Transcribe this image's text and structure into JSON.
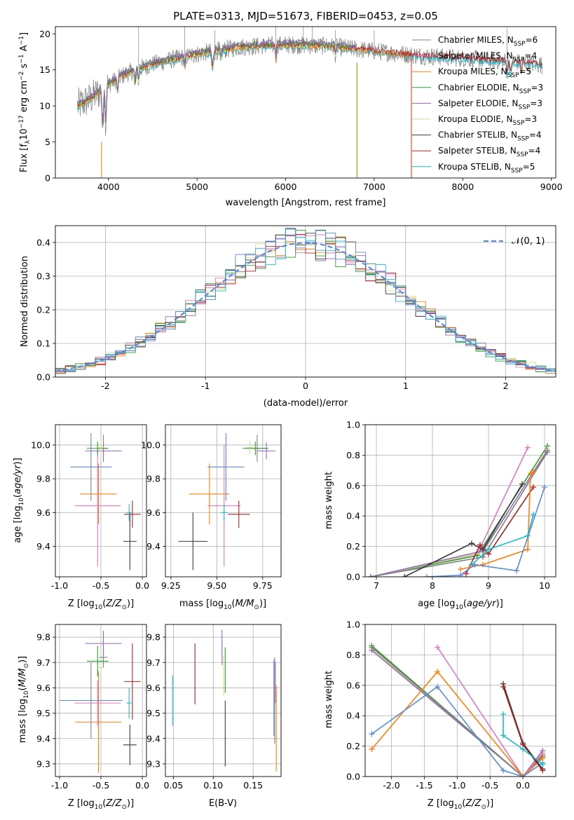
{
  "colors": {
    "Chabrier MILES": "#808080",
    "Salpeter MILES": "#e377c2",
    "Kroupa MILES": "#ff7f0e",
    "Chabrier ELODIE": "#2ca02c",
    "Salpeter ELODIE": "#9467bd",
    "Kroupa ELODIE": "#dbdb8d",
    "Chabrier STELIB": "#3a3a3a",
    "Salpeter STELIB": "#b22222",
    "Kroupa STELIB": "#17becf",
    "normal": "#5b8bd6"
  },
  "chart_data": [
    {
      "type": "line",
      "title": "PLATE=0313, MJD=51673, FIBERID=0453, z=0.05",
      "xlabel": "wavelength [Angstrom, rest frame]",
      "ylabel": "Flux [f_λ 10^-17 erg cm^-2 s^-1 A^-1]",
      "xlim": [
        3400,
        9050
      ],
      "ylim": [
        0,
        21
      ],
      "xticks": [
        4000,
        5000,
        6000,
        7000,
        8000,
        9000
      ],
      "yticks": [
        0,
        5,
        10,
        15,
        20
      ],
      "legend": "top-right",
      "grid": false,
      "series": [
        {
          "name": "Chabrier MILES, N_SSP=6"
        },
        {
          "name": "Salpeter MILES, N_SSP=4"
        },
        {
          "name": "Kroupa MILES, N_SSP=5"
        },
        {
          "name": "Chabrier ELODIE, N_SSP=3"
        },
        {
          "name": "Salpeter ELODIE, N_SSP=3"
        },
        {
          "name": "Kroupa ELODIE, N_SSP=3"
        },
        {
          "name": "Chabrier STELIB, N_SSP=4"
        },
        {
          "name": "Salpeter STELIB, N_SSP=4"
        },
        {
          "name": "Kroupa STELIB, N_SSP=5"
        }
      ],
      "continuum": {
        "x": [
          3650,
          3800,
          4000,
          4200,
          4500,
          5000,
          5500,
          6000,
          6500,
          7000,
          7500,
          8000,
          8500,
          8900
        ],
        "y": [
          10,
          11,
          13,
          14.5,
          15.8,
          17.2,
          18.2,
          18.5,
          18.3,
          17.6,
          17,
          16.6,
          16.2,
          15.7
        ]
      },
      "model_cutoffs": [
        3920,
        6800,
        7420
      ]
    },
    {
      "type": "bar",
      "xlabel": "(data-model)/error",
      "ylabel": "Normed distribution",
      "xlim": [
        -2.5,
        2.5
      ],
      "ylim": [
        0,
        0.45
      ],
      "xticks": [
        -2,
        -1,
        0,
        1,
        2
      ],
      "yticks": [
        0.0,
        0.1,
        0.2,
        0.3,
        0.4
      ],
      "grid": true,
      "legend": "top-right",
      "reference": {
        "name": "N(0,1)",
        "mean": 0,
        "sigma": 1
      }
    },
    {
      "type": "scatter",
      "xlabel": "Z [log10(Z/Z⊙)]",
      "ylabel": "age [log10(age/yr)]",
      "xlim": [
        -1.05,
        0.05
      ],
      "ylim": [
        9.22,
        10.12
      ],
      "xticks": [
        -1.0,
        -0.5,
        0.0
      ],
      "yticks": [
        9.4,
        9.6,
        9.8,
        10.0
      ],
      "grid": true,
      "points": [
        {
          "model": "Chabrier MILES",
          "x": -0.47,
          "y": 9.98,
          "xerr": 0.05,
          "yerr": 0.08
        },
        {
          "model": "Salpeter MILES",
          "x": -0.54,
          "y": 9.64,
          "xerr": 0.28,
          "yerr": 0.36
        },
        {
          "model": "Kroupa MILES",
          "x": -0.53,
          "y": 9.71,
          "xerr": 0.22,
          "yerr": 0.18
        },
        {
          "model": "Chabrier ELODIE",
          "x": -0.54,
          "y": 9.98,
          "xerr": 0.13,
          "yerr": 0.04
        },
        {
          "model": "Salpeter ELODIE",
          "x": -0.47,
          "y": 9.965,
          "xerr": 0.22,
          "yerr": 0.05
        },
        {
          "model": "Kroupa ELODIE",
          "x": -0.5,
          "y": 9.985,
          "xerr": 0.04,
          "yerr": 0.04
        },
        {
          "model": "Chabrier STELIB",
          "x": -0.15,
          "y": 9.43,
          "xerr": 0.08,
          "yerr": 0.17
        },
        {
          "model": "Salpeter STELIB",
          "x": -0.12,
          "y": 9.59,
          "xerr": 0.1,
          "yerr": 0.08
        },
        {
          "model": "Kroupa STELIB",
          "x": -0.16,
          "y": 9.6,
          "xerr": 0.03,
          "yerr": 0.05
        },
        {
          "model": "normal",
          "x": -0.62,
          "y": 9.87,
          "xerr": 0.25,
          "yerr": 0.2
        }
      ]
    },
    {
      "type": "scatter",
      "xlabel": "mass [log10(M/M⊙)]",
      "ylabel": "",
      "xlim": [
        9.22,
        9.85
      ],
      "ylim": [
        9.22,
        10.12
      ],
      "xticks": [
        9.25,
        9.5,
        9.75
      ],
      "yticks": [
        9.4,
        9.6,
        9.8,
        10.0
      ],
      "grid": true,
      "points": [
        {
          "model": "Chabrier MILES",
          "x": 9.72,
          "y": 9.98,
          "xerr": 0.06,
          "yerr": 0.08
        },
        {
          "model": "Salpeter MILES",
          "x": 9.54,
          "y": 9.64,
          "xerr": 0.09,
          "yerr": 0.36
        },
        {
          "model": "Kroupa MILES",
          "x": 9.46,
          "y": 9.71,
          "xerr": 0.11,
          "yerr": 0.18
        },
        {
          "model": "Chabrier ELODIE",
          "x": 9.71,
          "y": 9.98,
          "xerr": 0.07,
          "yerr": 0.04
        },
        {
          "model": "Salpeter ELODIE",
          "x": 9.77,
          "y": 9.965,
          "xerr": 0.05,
          "yerr": 0.05
        },
        {
          "model": "Kroupa ELODIE",
          "x": 9.68,
          "y": 9.985,
          "xerr": 0.02,
          "yerr": 0.04
        },
        {
          "model": "Chabrier STELIB",
          "x": 9.37,
          "y": 9.43,
          "xerr": 0.08,
          "yerr": 0.17
        },
        {
          "model": "Salpeter STELIB",
          "x": 9.62,
          "y": 9.59,
          "xerr": 0.06,
          "yerr": 0.08
        },
        {
          "model": "Kroupa STELIB",
          "x": 9.54,
          "y": 9.6,
          "xerr": 0.02,
          "yerr": 0.05
        },
        {
          "model": "normal",
          "x": 9.55,
          "y": 9.87,
          "xerr": 0.1,
          "yerr": 0.2
        }
      ]
    },
    {
      "type": "line",
      "xlabel": "age [log10(age/yr)]",
      "ylabel": "mass weight",
      "xlim": [
        6.8,
        10.2
      ],
      "ylim": [
        0,
        1.0
      ],
      "xticks": [
        7,
        8,
        9,
        10
      ],
      "yticks": [
        0.0,
        0.2,
        0.4,
        0.6,
        0.8,
        1.0
      ],
      "grid": true,
      "series": [
        {
          "model": "Salpeter MILES",
          "x": [
            6.9,
            8.8,
            9.7
          ],
          "y": [
            0.0,
            0.15,
            0.85
          ]
        },
        {
          "model": "Chabrier ELODIE",
          "x": [
            6.9,
            8.8,
            10.05
          ],
          "y": [
            0.0,
            0.14,
            0.86
          ]
        },
        {
          "model": "Kroupa ELODIE",
          "x": [
            6.9,
            8.9,
            10.05
          ],
          "y": [
            0.0,
            0.16,
            0.84
          ]
        },
        {
          "model": "Salpeter ELODIE",
          "x": [
            6.9,
            8.9,
            10.05
          ],
          "y": [
            0.0,
            0.17,
            0.83
          ]
        },
        {
          "model": "Chabrier MILES",
          "x": [
            6.9,
            8.9,
            10.05
          ],
          "y": [
            0.0,
            0.13,
            0.82
          ]
        },
        {
          "model": "Chabrier STELIB",
          "x": [
            7.5,
            8.7,
            8.9,
            9.6
          ],
          "y": [
            0.0,
            0.22,
            0.18,
            0.61
          ]
        },
        {
          "model": "Salpeter STELIB",
          "x": [
            8.6,
            8.85,
            9.0,
            9.8
          ],
          "y": [
            0.02,
            0.21,
            0.15,
            0.59
          ]
        },
        {
          "model": "Kroupa MILES",
          "x": [
            8.5,
            8.9,
            9.7,
            9.75,
            9.8
          ],
          "y": [
            0.05,
            0.08,
            0.18,
            0.68,
            0.69
          ]
        },
        {
          "model": "Kroupa STELIB",
          "x": [
            8.7,
            9.0,
            9.7,
            9.8
          ],
          "y": [
            0.08,
            0.18,
            0.27,
            0.41
          ]
        },
        {
          "model": "normal",
          "x": [
            7.9,
            8.5,
            8.75,
            9.5,
            10.0
          ],
          "y": [
            0.0,
            0.01,
            0.08,
            0.04,
            0.59
          ]
        }
      ]
    },
    {
      "type": "scatter",
      "xlabel": "Z [log10(Z/Z⊙)]",
      "ylabel": "mass [log10(M/M⊙)]",
      "xlim": [
        -1.05,
        0.05
      ],
      "ylim": [
        9.25,
        9.85
      ],
      "xticks": [
        -1.0,
        -0.5,
        0.0
      ],
      "yticks": [
        9.3,
        9.4,
        9.5,
        9.6,
        9.7,
        9.8
      ],
      "grid": true,
      "points": [
        {
          "model": "Chabrier MILES",
          "x": -0.47,
          "y": 9.72,
          "xerr": 0.05,
          "yerr": 0.04
        },
        {
          "model": "Salpeter MILES",
          "x": -0.54,
          "y": 9.54,
          "xerr": 0.28,
          "yerr": 0.09
        },
        {
          "model": "Kroupa MILES",
          "x": -0.53,
          "y": 9.465,
          "xerr": 0.28,
          "yerr": 0.2
        },
        {
          "model": "Chabrier ELODIE",
          "x": -0.54,
          "y": 9.705,
          "xerr": 0.13,
          "yerr": 0.06
        },
        {
          "model": "Salpeter ELODIE",
          "x": -0.47,
          "y": 9.775,
          "xerr": 0.22,
          "yerr": 0.05
        },
        {
          "model": "Kroupa ELODIE",
          "x": -0.5,
          "y": 9.68,
          "xerr": 0.04,
          "yerr": 0.02
        },
        {
          "model": "Chabrier STELIB",
          "x": -0.15,
          "y": 9.375,
          "xerr": 0.08,
          "yerr": 0.08
        },
        {
          "model": "Salpeter STELIB",
          "x": -0.12,
          "y": 9.625,
          "xerr": 0.1,
          "yerr": 0.15
        },
        {
          "model": "Kroupa STELIB",
          "x": -0.16,
          "y": 9.54,
          "xerr": 0.03,
          "yerr": 0.06
        },
        {
          "model": "normal",
          "x": -0.62,
          "y": 9.55,
          "xerr": 0.38,
          "yerr": 0.15
        }
      ]
    },
    {
      "type": "scatter",
      "xlabel": "E(B-V)",
      "ylabel": "",
      "xlim": [
        0.04,
        0.185
      ],
      "ylim": [
        9.25,
        9.85
      ],
      "xticks": [
        0.05,
        0.1,
        0.15
      ],
      "yticks": [
        9.3,
        9.4,
        9.5,
        9.6,
        9.7,
        9.8
      ],
      "grid": true,
      "points": [
        {
          "model": "Chabrier MILES",
          "x": 0.177,
          "y": 9.55,
          "xerr": 0,
          "yerr": 0.17
        },
        {
          "model": "Kroupa MILES",
          "x": 0.179,
          "y": 9.44,
          "xerr": 0,
          "yerr": 0.17
        },
        {
          "model": "Salpeter MILES",
          "x": 0.178,
          "y": 9.62,
          "xerr": 0,
          "yerr": 0.08
        },
        {
          "model": "normal",
          "x": 0.176,
          "y": 9.56,
          "xerr": 0,
          "yerr": 0.15
        },
        {
          "model": "Kroupa STELIB",
          "x": 0.049,
          "y": 9.55,
          "xerr": 0,
          "yerr": 0.1
        },
        {
          "model": "Salpeter STELIB",
          "x": 0.077,
          "y": 9.655,
          "xerr": 0,
          "yerr": 0.12
        },
        {
          "model": "Salpeter ELODIE",
          "x": 0.111,
          "y": 9.76,
          "xerr": 0,
          "yerr": 0.07
        },
        {
          "model": "Kroupa ELODIE",
          "x": 0.113,
          "y": 9.65,
          "xerr": 0,
          "yerr": 0.08
        },
        {
          "model": "Chabrier ELODIE",
          "x": 0.115,
          "y": 9.67,
          "xerr": 0,
          "yerr": 0.09
        },
        {
          "model": "Chabrier STELIB",
          "x": 0.115,
          "y": 9.42,
          "xerr": 0,
          "yerr": 0.13
        }
      ]
    },
    {
      "type": "line",
      "xlabel": "Z [log10(Z/Z⊙)]",
      "ylabel": "mass weight",
      "xlim": [
        -2.4,
        0.5
      ],
      "ylim": [
        0,
        1.0
      ],
      "xticks": [
        -2.0,
        -1.5,
        -1.0,
        -0.5,
        0.0
      ],
      "yticks": [
        0.0,
        0.2,
        0.4,
        0.6,
        0.8,
        1.0
      ],
      "grid": true,
      "series": [
        {
          "model": "Chabrier ELODIE",
          "x": [
            -2.3,
            0.0,
            0.3
          ],
          "y": [
            0.86,
            0.0,
            0.14
          ]
        },
        {
          "model": "Kroupa ELODIE",
          "x": [
            -2.3,
            0.0,
            0.3
          ],
          "y": [
            0.84,
            0.0,
            0.16
          ]
        },
        {
          "model": "Salpeter ELODIE",
          "x": [
            -2.3,
            0.0,
            0.3
          ],
          "y": [
            0.83,
            0.0,
            0.17
          ]
        },
        {
          "model": "Chabrier MILES",
          "x": [
            -2.3,
            0.0,
            0.3
          ],
          "y": [
            0.85,
            0.0,
            0.13
          ]
        },
        {
          "model": "Salpeter MILES",
          "x": [
            -1.3,
            0.0,
            0.3
          ],
          "y": [
            0.85,
            0.0,
            0.15
          ]
        },
        {
          "model": "Kroupa MILES",
          "x": [
            -2.3,
            -1.3,
            0.0,
            0.3
          ],
          "y": [
            0.18,
            0.69,
            0.0,
            0.12
          ]
        },
        {
          "model": "normal",
          "x": [
            -2.3,
            -1.3,
            -0.3,
            0.0,
            0.3
          ],
          "y": [
            0.28,
            0.59,
            0.04,
            0.0,
            0.09
          ]
        },
        {
          "model": "Chabrier STELIB",
          "x": [
            -0.3,
            0.0,
            0.3
          ],
          "y": [
            0.61,
            0.22,
            0.05
          ]
        },
        {
          "model": "Salpeter STELIB",
          "x": [
            -0.3,
            0.0,
            0.3
          ],
          "y": [
            0.59,
            0.21,
            0.04
          ]
        },
        {
          "model": "Kroupa STELIB",
          "x": [
            -0.3,
            -0.3,
            0.0,
            0.3
          ],
          "y": [
            0.41,
            0.27,
            0.18,
            0.08
          ]
        }
      ]
    }
  ]
}
